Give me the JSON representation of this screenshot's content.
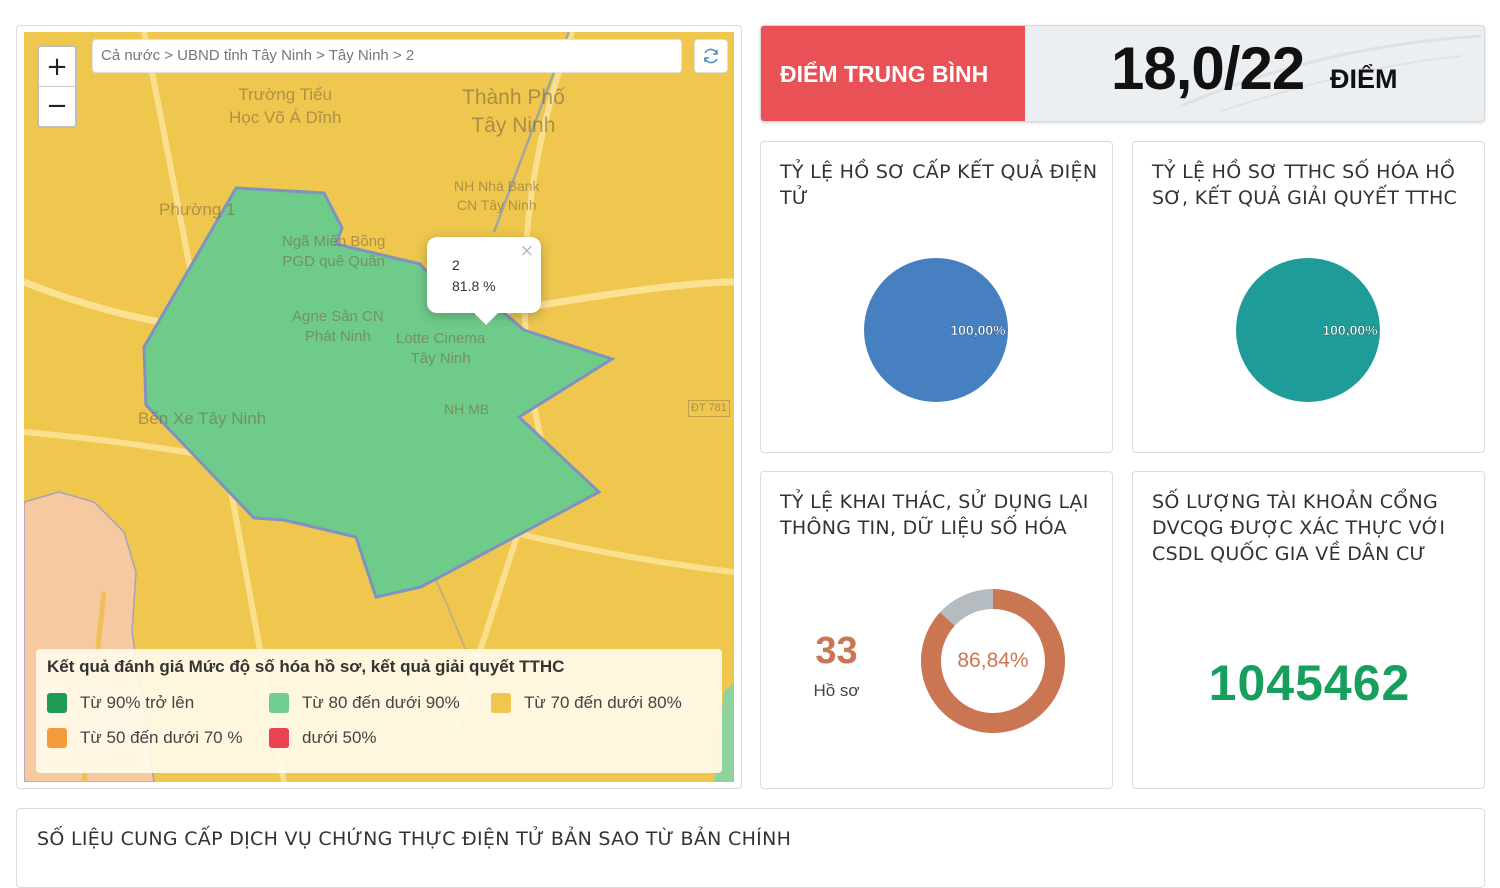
{
  "map": {
    "breadcrumb": "Cả nước > UBND tỉnh Tây Ninh > Tây Ninh > 2",
    "zoom_in": "+",
    "zoom_out": "−",
    "labels": {
      "school": "Trường Tiểu\nHọc Võ Á Dĩnh",
      "city": "Thành Phố\nTây Ninh",
      "bank": "NH Nhà Bank\nCN Tây Ninh",
      "ward": "Phường 1",
      "edu": "Ngã Miến Bồng\nPGD quê Quân",
      "cinema": "Agne Sản CN\nPhát Ninh",
      "mall": "Lotte Cinema\nTây Ninh",
      "bus": "Bến Xe Tây Ninh",
      "nhmb": "NH MB",
      "road": "ĐT 781"
    },
    "popup": {
      "name": "2",
      "value": "81.8 %",
      "close": "×"
    },
    "legend": {
      "title": "Kết quả đánh giá Mức độ số hóa hồ sơ, kết quả giải quyết TTHC",
      "items": [
        {
          "label": "Từ 90% trở lên",
          "color": "#1e9a55"
        },
        {
          "label": "Từ 80 đến dưới 90%",
          "color": "#6fcf8f"
        },
        {
          "label": "Từ 70 đến dưới 80%",
          "color": "#efc74f"
        },
        {
          "label": "Từ 50 đến dưới 70 %",
          "color": "#f49a3d"
        },
        {
          "label": "dưới 50%",
          "color": "#e8434f"
        }
      ]
    },
    "colors": {
      "area_fill": "#6fcb8a",
      "area_stroke": "#7f93c2",
      "base": "#efc74f",
      "side": "#f7c9a0"
    }
  },
  "score": {
    "label": "ĐIỂM TRUNG BÌNH",
    "value": "18,0/22",
    "unit": "ĐIỂM"
  },
  "cards": [
    {
      "title": "TỶ LỆ HỒ SƠ CẤP KẾT QUẢ ĐIỆN TỬ",
      "percent": "100,00%",
      "fraction": 1.0,
      "color": "#4680c0"
    },
    {
      "title": "TỶ LỆ HỒ SƠ TTHC SỐ HÓA HỒ SƠ, KẾT QUẢ GIẢI QUYẾT TTHC",
      "percent": "100,00%",
      "fraction": 1.0,
      "color": "#1f9b99"
    },
    {
      "title": "TỶ LỆ KHAI THÁC, SỬ DỤNG LẠI THÔNG TIN, DỮ LIỆU SỐ HÓA",
      "percent": "86,84%",
      "fraction": 0.8684,
      "color": "#cb7653",
      "rest_color": "#b4bcc2",
      "count": "33",
      "count_label": "Hồ sơ"
    },
    {
      "title": "SỐ LƯỢNG TÀI KHOẢN CỔNG DVCQG ĐƯỢC XÁC THỰC VỚI CSDL QUỐC GIA VỀ DÂN CƯ",
      "value": "1045462"
    }
  ],
  "bottom": {
    "title": "SỐ LIỆU CUNG CẤP DỊCH VỤ CHỨNG THỰC ĐIỆN TỬ BẢN SAO TỪ BẢN CHÍNH"
  }
}
